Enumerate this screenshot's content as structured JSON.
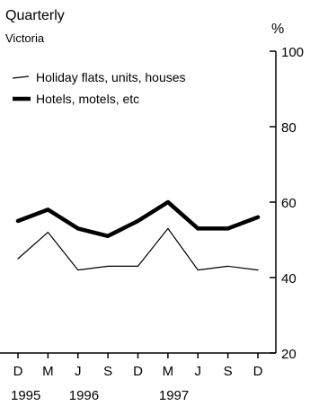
{
  "chart_data": {
    "type": "line",
    "title": "Quarterly",
    "subtitle": "Victoria",
    "xlabel": "",
    "ylabel": "%",
    "ylim": [
      20,
      100
    ],
    "yticks": [
      20,
      40,
      60,
      80,
      100
    ],
    "categories": [
      "D",
      "M",
      "J",
      "S",
      "D",
      "M",
      "J",
      "S",
      "D"
    ],
    "years": [
      {
        "label": "1995",
        "index": 0
      },
      {
        "label": "1996",
        "index": 2
      },
      {
        "label": "1997",
        "index": 5
      }
    ],
    "legend_position": "top-left",
    "grid": false,
    "series": [
      {
        "name": "Holiday flats, units, houses",
        "values": [
          45,
          52,
          42,
          43,
          43,
          53,
          42,
          43,
          42
        ],
        "color": "#000000",
        "style": "thin"
      },
      {
        "name": "Hotels, motels, etc",
        "values": [
          55,
          58,
          53,
          51,
          55,
          60,
          53,
          53,
          56
        ],
        "color": "#000000",
        "style": "thick"
      }
    ]
  }
}
